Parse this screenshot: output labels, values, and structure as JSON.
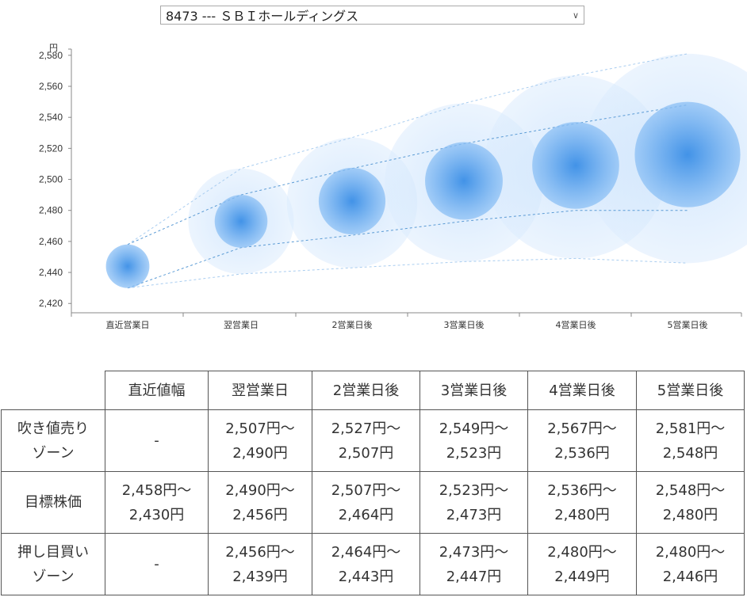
{
  "selector": {
    "value": "8473 --- ＳＢＩホールディングス"
  },
  "chart_data": {
    "type": "bubble-forecast",
    "y_unit": "円",
    "y_ticks": [
      "2,420",
      "2,440",
      "2,460",
      "2,480",
      "2,500",
      "2,520",
      "2,540",
      "2,560",
      "2,580"
    ],
    "ylim": [
      2414,
      2584
    ],
    "categories": [
      "直近営業日",
      "翌営業日",
      "2営業日後",
      "3営業日後",
      "4営業日後",
      "5営業日後"
    ],
    "center": [
      2444,
      2473,
      2486,
      2499,
      2509,
      2516
    ],
    "upper_line": [
      2458,
      2490,
      2507,
      2523,
      2536,
      2548
    ],
    "lower_line": [
      2430,
      2456,
      2464,
      2473,
      2480,
      2480
    ],
    "outer_upper": [
      2458,
      2507,
      2527,
      2549,
      2567,
      2581
    ],
    "outer_lower": [
      2430,
      2439,
      2443,
      2447,
      2449,
      2446
    ],
    "colors": {
      "core": "#3d8fe0",
      "halo": "#b5d6fb",
      "line": "#5b9bd5"
    }
  },
  "table": {
    "headers": [
      "",
      "直近値幅",
      "翌営業日",
      "2営業日後",
      "3営業日後",
      "4営業日後",
      "5営業日後"
    ],
    "rows": [
      {
        "label": [
          "吹き値売り",
          "ゾーン"
        ],
        "cells": [
          [
            "-"
          ],
          [
            "2,507円～",
            "2,490円"
          ],
          [
            "2,527円～",
            "2,507円"
          ],
          [
            "2,549円～",
            "2,523円"
          ],
          [
            "2,567円～",
            "2,536円"
          ],
          [
            "2,581円～",
            "2,548円"
          ]
        ]
      },
      {
        "label": [
          "目標株価"
        ],
        "cells": [
          [
            "2,458円～",
            "2,430円"
          ],
          [
            "2,490円～",
            "2,456円"
          ],
          [
            "2,507円～",
            "2,464円"
          ],
          [
            "2,523円～",
            "2,473円"
          ],
          [
            "2,536円～",
            "2,480円"
          ],
          [
            "2,548円～",
            "2,480円"
          ]
        ]
      },
      {
        "label": [
          "押し目買い",
          "ゾーン"
        ],
        "cells": [
          [
            "-"
          ],
          [
            "2,456円～",
            "2,439円"
          ],
          [
            "2,464円～",
            "2,443円"
          ],
          [
            "2,473円～",
            "2,447円"
          ],
          [
            "2,480円～",
            "2,449円"
          ],
          [
            "2,480円～",
            "2,446円"
          ]
        ]
      }
    ]
  }
}
